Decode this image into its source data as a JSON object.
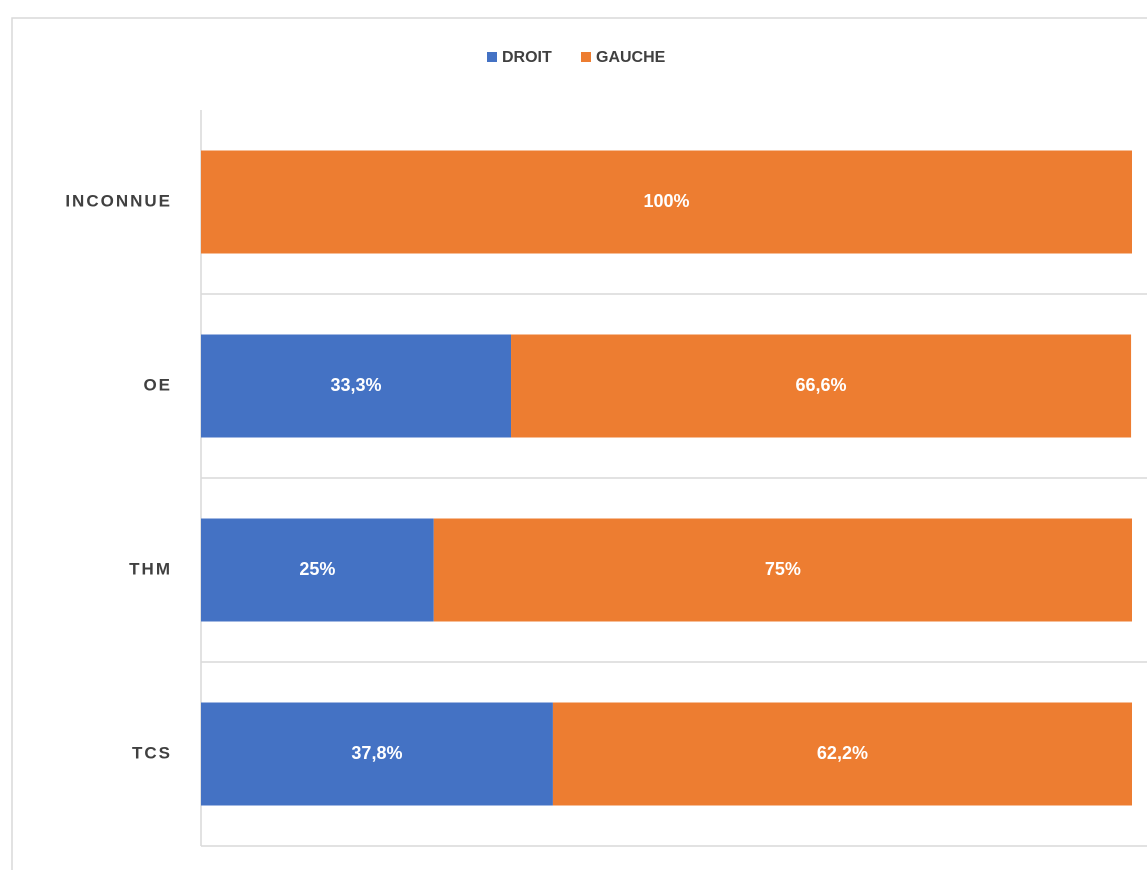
{
  "chart_data": {
    "type": "stacked_bar_horizontal",
    "categories": [
      "INCONNUE",
      "OE",
      "THM",
      "TCS"
    ],
    "series": [
      {
        "name": "DROIT",
        "color": "#4472c4",
        "values": [
          0,
          33.3,
          25,
          37.8
        ],
        "value_labels": [
          null,
          "33,3%",
          "25%",
          "37,8%"
        ]
      },
      {
        "name": "GAUCHE",
        "color": "#ed7d31",
        "values": [
          100,
          66.6,
          75,
          62.2
        ],
        "value_labels": [
          "100%",
          "66,6%",
          "75%",
          "62,2%"
        ]
      }
    ],
    "xlim": [
      0,
      100
    ],
    "grid": true,
    "legend": "top"
  }
}
